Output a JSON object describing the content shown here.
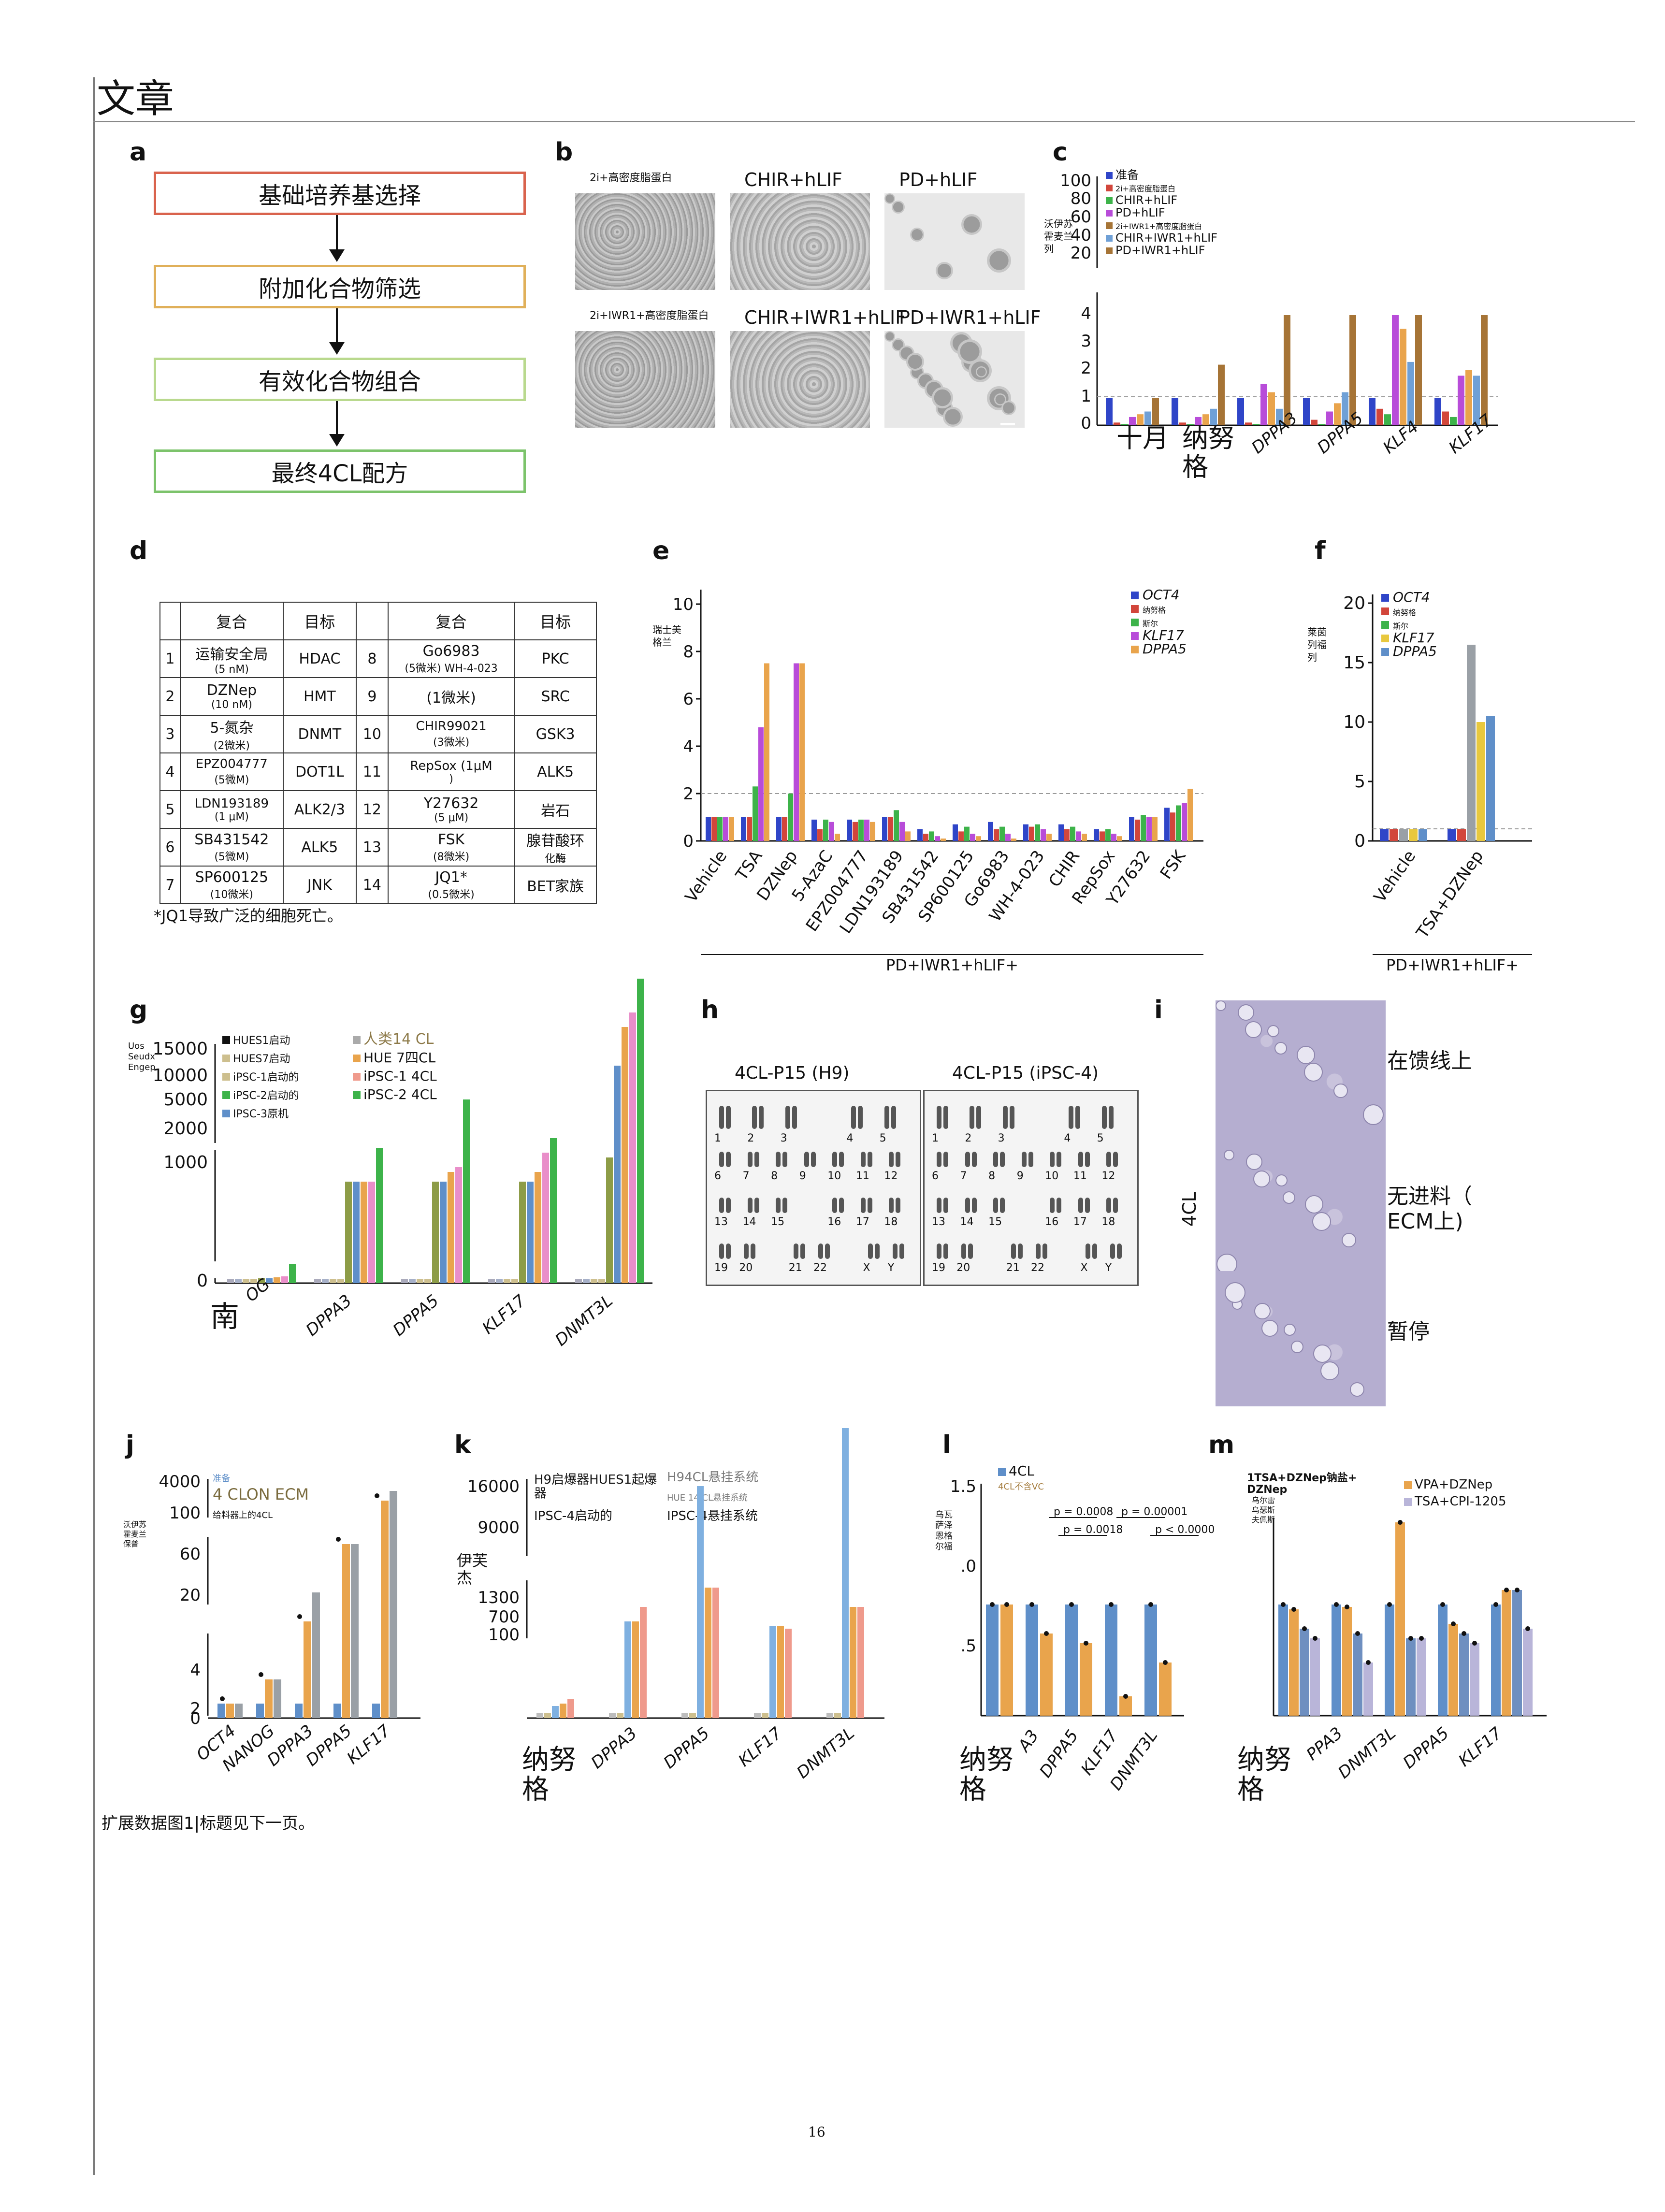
{
  "header": {
    "title": "文章"
  },
  "panels": {
    "a": {
      "letter": "a",
      "steps": [
        "基础培养基选择",
        "附加化合物筛选",
        "有效化合物组合",
        "最终4CL配方"
      ],
      "colors": [
        "#d9634d",
        "#e0b05a",
        "#b9d98e",
        "#7cc36b"
      ]
    },
    "b": {
      "letter": "b",
      "labels": [
        "2i+高密度脂蛋白",
        "CHIR+hLIF",
        "PD+hLIF",
        "2i+IWR1+高密度脂蛋白",
        "CHIR+IWR1+hLIF",
        "PD+IWR1+hLIF"
      ]
    },
    "c": {
      "letter": "c",
      "ylabel": "沃伊苏\n霍麦兰\n列",
      "ticks_top": [
        "100",
        "80",
        "60",
        "40",
        "20"
      ],
      "ticks_bottom": [
        "4",
        "3",
        "2",
        "1",
        "0"
      ],
      "legend": [
        "准备",
        "2i+高密度脂蛋白",
        "CHIR+hLIF",
        "PD+hLIF",
        "2i+IWR1+高密度脂蛋白",
        "CHIR+IWR1+hLIF",
        "PD+IWR1+hLIF"
      ],
      "xlabels": [
        "十月",
        "纳努\n格",
        "DPPA3",
        "DPPA5",
        "KLF4",
        "KLF17"
      ]
    },
    "d": {
      "letter": "d",
      "headers": [
        "复合",
        "目标",
        "复合",
        "目标"
      ],
      "rows": [
        [
          "1",
          "运输安全局\n(5 nM)",
          "HDAC",
          "8",
          "Go6983\n(5微米) WH-4-023",
          "PKC"
        ],
        [
          "2",
          "DZNep\n(10 nM)",
          "HMT",
          "9",
          "(1微米)",
          "SRC"
        ],
        [
          "3",
          "5-氮杂\n(2微米)",
          "DNMT",
          "10",
          "CHIR99021\n(3微米)",
          "GSK3"
        ],
        [
          "4",
          "EPZ004777\n(5微M)",
          "DOT1L",
          "11",
          "RepSox (1μM\n)",
          "ALK5"
        ],
        [
          "5",
          "LDN193189\n(1 μM)",
          "ALK2/3",
          "12",
          "Y27632\n(5 μM)",
          "岩石"
        ],
        [
          "6",
          "SB431542\n(5微M)",
          "ALK5",
          "13",
          "FSK\n(8微米)",
          "腺苷酸环\n化酶"
        ],
        [
          "7",
          "SP600125\n(10微米)",
          "JNK",
          "14",
          "JQ1*\n(0.5微米)",
          "BET家族"
        ]
      ],
      "footnote": "*JQ1导致广泛的细胞死亡。"
    },
    "e": {
      "letter": "e",
      "ylabel": "瑞士美\n格兰",
      "legend": [
        "OCT4",
        "纳努格",
        "斯尔",
        "KLF17",
        "DPPA5"
      ],
      "xlabels": [
        "Vehicle",
        "TSA",
        "DZNep",
        "5-AzaC",
        "EPZ004777",
        "LDN193189",
        "SB431542",
        "SP600125",
        "Go6983",
        "WH-4-023",
        "CHIR",
        "RepSox",
        "Y27632",
        "FSK"
      ],
      "footer": "PD+IWR1+hLIF+",
      "ticks": [
        "0",
        "2",
        "4",
        "6",
        "8",
        "10"
      ]
    },
    "f": {
      "letter": "f",
      "ylabel": "莱茵\n列福\n列",
      "legend": [
        "OCT4",
        "纳努格",
        "斯尔",
        "KLF17",
        "DPPA5"
      ],
      "xlabels": [
        "Vehicle",
        "TSA+DZNep"
      ],
      "footer": "PD+IWR1+hLIF+",
      "ticks": [
        "0",
        "5",
        "10",
        "15",
        "20"
      ]
    },
    "g": {
      "letter": "g",
      "ylabel": "Uos\nSeudx\nEngep",
      "legend": [
        "HUES1启动",
        "HUES7启动",
        "iPSC-1启动的",
        "iPSC-2启动的",
        "IPSC-3原机",
        "人类14 CL",
        "HUE 7四CL",
        "iPSC-1 4CL",
        "iPSC-2 4CL"
      ],
      "xlabels": [
        "南",
        "DPPA3",
        "DPPA5",
        "KLF17",
        "DNMT3L"
      ],
      "ticks": [
        "15000",
        "10000",
        "5000",
        "2000",
        "1000",
        "0"
      ],
      "xfrag": "OG"
    },
    "h": {
      "letter": "h",
      "titles": [
        "4CL-P15 (H9)",
        "4CL-P15 (iPSC-4)"
      ],
      "chrom": [
        "1",
        "2",
        "3",
        "4",
        "5",
        "6",
        "7",
        "8",
        "9",
        "10",
        "11",
        "12",
        "13",
        "14",
        "15",
        "16",
        "17",
        "18",
        "19",
        "20",
        "21",
        "22",
        "X",
        "Y"
      ]
    },
    "i": {
      "letter": "i",
      "labels": [
        "在馈线上",
        "无进料（\nECM上)",
        "暂停"
      ],
      "side": "4CL"
    },
    "j": {
      "letter": "j",
      "ylabel": "沃伊苏\n霍麦兰\n保普",
      "legend": [
        "准备",
        "4 CLON ECM",
        "给料器上的4CL"
      ],
      "xlabels": [
        "OCT4",
        "NANOG",
        "DPPA3",
        "DPPA5",
        "KLF17"
      ],
      "ticks": [
        "4000",
        "100",
        "60",
        "20",
        "4",
        "2",
        "0"
      ]
    },
    "k": {
      "letter": "k",
      "ylabel": "伊芙\n杰",
      "legend": [
        "H9启爆器HUES1起爆\n器",
        "H94CL悬挂系统",
        "HUE 14 CL悬挂系统",
        "IPSC-4启动的",
        "IPSC-4悬挂系统"
      ],
      "xlabels": [
        "纳努\n格",
        "DPPA3",
        "DPPA5",
        "KLF17",
        "DNMT3L"
      ],
      "ticks": [
        "16000",
        "9000",
        "1300",
        "700",
        "100"
      ]
    },
    "l": {
      "letter": "l",
      "ylabel": "乌瓦\n萨泽\n恩格\n尔福",
      "legend": [
        "4CL",
        "4CL不含VC"
      ],
      "pvalues": [
        "p = 0.0008",
        "p = 0.0018",
        "p = 0.00001",
        "p < 0.0000"
      ],
      "xlabels": [
        "纳努\n格",
        "A3",
        "DPPA5",
        "KLF17",
        "DNMT3L"
      ],
      "ticks": [
        "1.5",
        ".0",
        ".5"
      ]
    },
    "m": {
      "letter": "m",
      "ylabel": "乌尔雷\n乌瑟斯\n夫佩斯",
      "legend": [
        "1TSA+DZNep钠盐+\nDZNep",
        "VPA+DZNep",
        "TSA+CPI-1205"
      ],
      "xlabels": [
        "纳努\n格",
        "PPA3",
        "DNMT3L",
        "DPPA5",
        "KLF17"
      ]
    }
  },
  "caption": "扩展数据图1|标题见下一页。",
  "page_number": "16",
  "colors": {
    "blue": "#2f45c8",
    "red": "#d2463b",
    "green": "#3db34a",
    "purple": "#b84cd9",
    "brown": "#a67436",
    "lightblue": "#6fa0d6",
    "gray": "#9aa0a6",
    "orange": "#e9a44c",
    "yellow": "#e8c83e",
    "steel": "#5f8fc9",
    "tan": "#cdbf8e",
    "salmon": "#ef9a8c",
    "pink": "#e98ec9",
    "olive": "#8d9c47"
  }
}
